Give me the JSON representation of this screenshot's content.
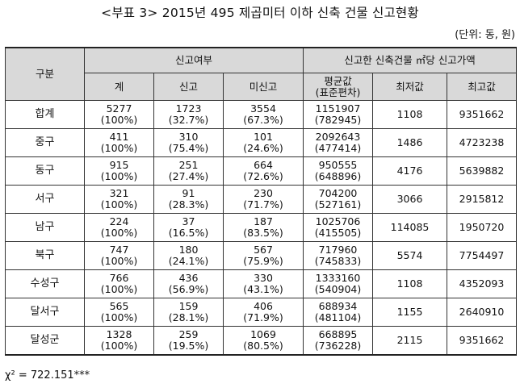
{
  "title": "<부표 3> 2015년 495 제곱미터 이하 신축 건물 신고현황",
  "unit": "(단위: 동, 원)",
  "headers": {
    "group": "구분",
    "report_status": "신고여부",
    "total": "계",
    "reported": "신고",
    "unreported": "미신고",
    "price_group": "신고한 신축건물 ㎡당 신고가액",
    "mean_line1": "평균값",
    "mean_line2": "(표준편차)",
    "min": "최저값",
    "max": "최고값"
  },
  "rows": [
    {
      "label": "합계",
      "total": "5277",
      "total_pct": "(100%)",
      "reported": "1723",
      "reported_pct": "(32.7%)",
      "unreported": "3554",
      "unreported_pct": "(67.3%)",
      "mean": "1151907",
      "sd": "(782945)",
      "min": "1108",
      "max": "9351662"
    },
    {
      "label": "중구",
      "total": "411",
      "total_pct": "(100%)",
      "reported": "310",
      "reported_pct": "(75.4%)",
      "unreported": "101",
      "unreported_pct": "(24.6%)",
      "mean": "2092643",
      "sd": "(477414)",
      "min": "1486",
      "max": "4723238"
    },
    {
      "label": "동구",
      "total": "915",
      "total_pct": "(100%)",
      "reported": "251",
      "reported_pct": "(27.4%)",
      "unreported": "664",
      "unreported_pct": "(72.6%)",
      "mean": "950555",
      "sd": "(648896)",
      "min": "4176",
      "max": "5639882"
    },
    {
      "label": "서구",
      "total": "321",
      "total_pct": "(100%)",
      "reported": "91",
      "reported_pct": "(28.3%)",
      "unreported": "230",
      "unreported_pct": "(71.7%)",
      "mean": "704200",
      "sd": "(527161)",
      "min": "3066",
      "max": "2915812"
    },
    {
      "label": "남구",
      "total": "224",
      "total_pct": "(100%)",
      "reported": "37",
      "reported_pct": "(16.5%)",
      "unreported": "187",
      "unreported_pct": "(83.5%)",
      "mean": "1025706",
      "sd": "(415505)",
      "min": "114085",
      "max": "1950720"
    },
    {
      "label": "북구",
      "total": "747",
      "total_pct": "(100%)",
      "reported": "180",
      "reported_pct": "(24.1%)",
      "unreported": "567",
      "unreported_pct": "(75.9%)",
      "mean": "717960",
      "sd": "(745833)",
      "min": "5574",
      "max": "7754497"
    },
    {
      "label": "수성구",
      "total": "766",
      "total_pct": "(100%)",
      "reported": "436",
      "reported_pct": "(56.9%)",
      "unreported": "330",
      "unreported_pct": "(43.1%)",
      "mean": "1333160",
      "sd": "(540904)",
      "min": "1108",
      "max": "4352093"
    },
    {
      "label": "달서구",
      "total": "565",
      "total_pct": "(100%)",
      "reported": "159",
      "reported_pct": "(28.1%)",
      "unreported": "406",
      "unreported_pct": "(71.9%)",
      "mean": "688934",
      "sd": "(481104)",
      "min": "1155",
      "max": "2640910"
    },
    {
      "label": "달성군",
      "total": "1328",
      "total_pct": "(100%)",
      "reported": "259",
      "reported_pct": "(19.5%)",
      "unreported": "1069",
      "unreported_pct": "(80.5%)",
      "mean": "668895",
      "sd": "(736228)",
      "min": "2115",
      "max": "9351662"
    }
  ],
  "footnote": "χ² = 722.151***"
}
